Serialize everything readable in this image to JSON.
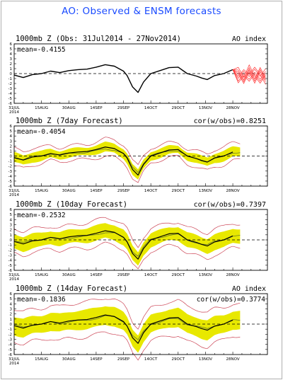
{
  "title": "AO: Observed & ENSM forecasts",
  "colors": {
    "title": "#1a4bff",
    "observed": "#000000",
    "ensemble_band": "#e8e800",
    "ensemble_members_top": "#ff3333",
    "ensemble_spread": "#cc4455",
    "zero_line": "#000000"
  },
  "chart_data": [
    {
      "type": "line",
      "panel_title": "1000mb Z (Obs: 31Jul2014 - 27Nov2014)",
      "right_label": "AO index",
      "mean_label": "mean=-0.4155",
      "x_tick_labels": [
        "31JUL\n2014",
        "15AUG",
        "30AUG",
        "14SEP",
        "29SEP",
        "14OCT",
        "29OCT",
        "13NOV",
        "28NOV"
      ],
      "x_ticks_day": [
        0,
        15,
        30,
        45,
        60,
        75,
        90,
        105,
        120
      ],
      "xlim": [
        0,
        139
      ],
      "ylim": [
        -6,
        6
      ],
      "y_ticks": [
        -6,
        -5,
        -4,
        -3,
        -2,
        -1,
        0,
        1,
        2,
        3,
        4,
        5,
        6
      ],
      "series": [
        {
          "role": "observed",
          "x": [
            0,
            5,
            10,
            15,
            20,
            25,
            30,
            35,
            40,
            45,
            50,
            55,
            60,
            62,
            65,
            68,
            71,
            75,
            80,
            85,
            90,
            95,
            100,
            103,
            106,
            110,
            115,
            120
          ],
          "values": [
            -0.3,
            -0.8,
            -0.2,
            0.0,
            0.5,
            0.2,
            0.6,
            0.8,
            0.9,
            1.3,
            1.8,
            1.5,
            0.5,
            -0.4,
            -2.7,
            -3.8,
            -1.7,
            0.0,
            0.6,
            1.2,
            1.3,
            0.0,
            -0.5,
            -0.9,
            -1.2,
            -0.4,
            0.0,
            0.8
          ]
        },
        {
          "role": "ensemble_members",
          "x": [
            120,
            123,
            126,
            129,
            132,
            135,
            138
          ],
          "values_low": [
            -2.5,
            -1.9,
            -2.2,
            -1.8,
            -2.4,
            -2.0,
            -2.3
          ],
          "values_high": [
            1.2,
            1.6,
            1.1,
            1.9,
            1.4,
            1.7,
            1.3
          ]
        }
      ]
    },
    {
      "type": "line",
      "panel_title": "1000mb Z (7day Forecast)",
      "right_label": "cor(w/obs)=0.8251",
      "mean_label": "mean=-0.4054",
      "x_tick_labels": [
        "31JUL\n2014",
        "15AUG",
        "30AUG",
        "14SEP",
        "29SEP",
        "14OCT",
        "29OCT",
        "13NOV",
        "28NOV"
      ],
      "x_ticks_day": [
        0,
        15,
        30,
        45,
        60,
        75,
        90,
        105,
        120
      ],
      "xlim": [
        0,
        139
      ],
      "ylim": [
        -6,
        6
      ],
      "y_ticks": [
        -6,
        -5,
        -4,
        -3,
        -2,
        -1,
        0,
        1,
        2,
        3,
        4,
        5,
        6
      ],
      "band_halfwidth": 0.9,
      "spread_halfwidth": 1.6
    },
    {
      "type": "line",
      "panel_title": "1000mb Z (10day Forecast)",
      "right_label": "cor(w/obs)=0.7397",
      "mean_label": "mean=-0.2532",
      "x_tick_labels": [
        "31JUL\n2014",
        "15AUG",
        "30AUG",
        "14SEP",
        "29SEP",
        "14OCT",
        "29OCT",
        "13NOV",
        "28NOV"
      ],
      "x_ticks_day": [
        0,
        15,
        30,
        45,
        60,
        75,
        90,
        105,
        120
      ],
      "xlim": [
        0,
        139
      ],
      "ylim": [
        -6,
        6
      ],
      "y_ticks": [
        -6,
        -5,
        -4,
        -3,
        -2,
        -1,
        0,
        1,
        2,
        3,
        4,
        5,
        6
      ],
      "band_halfwidth": 1.4,
      "spread_halfwidth": 2.4
    },
    {
      "type": "line",
      "panel_title": "1000mb Z (14day Forecast)",
      "right_label": "AO index",
      "corr_label": "cor(w/obs)=0.3774",
      "mean_label": "mean=-0.1836",
      "x_tick_labels": [
        "31JUL\n2014",
        "15AUG",
        "30AUG",
        "14SEP",
        "29SEP",
        "14OCT",
        "29OCT",
        "13NOV",
        "28NOV"
      ],
      "x_ticks_day": [
        0,
        15,
        30,
        45,
        60,
        75,
        90,
        105,
        120
      ],
      "xlim": [
        0,
        139
      ],
      "ylim": [
        -6,
        6
      ],
      "y_ticks": [
        -6,
        -5,
        -4,
        -3,
        -2,
        -1,
        0,
        1,
        2,
        3,
        4,
        5,
        6
      ],
      "band_halfwidth": 1.8,
      "spread_halfwidth": 3.3
    }
  ]
}
